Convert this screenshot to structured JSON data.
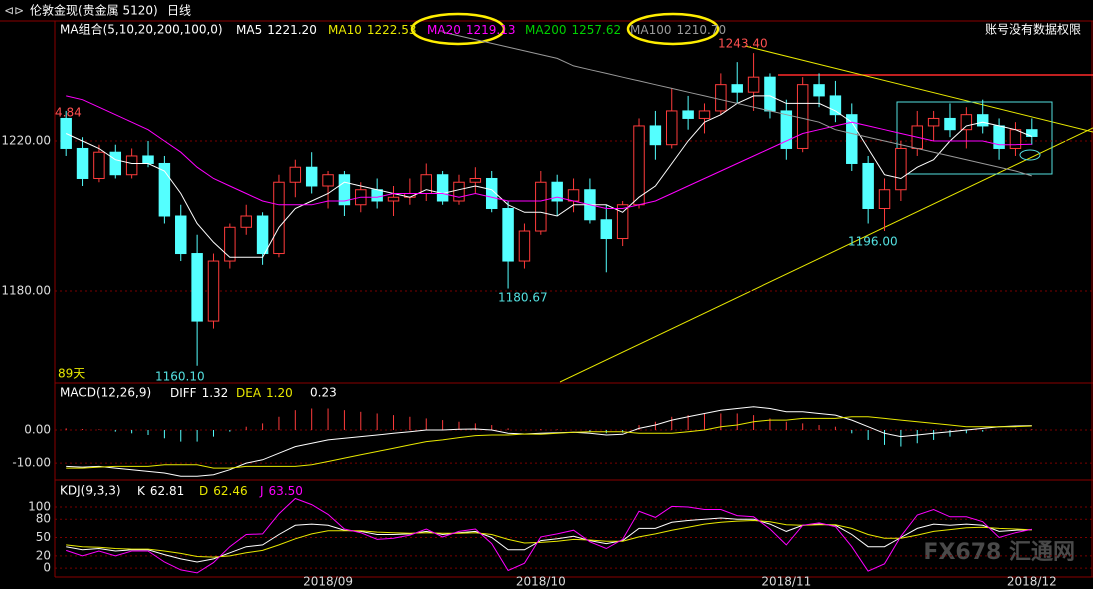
{
  "chart_data": [
    {
      "type": "candlestick",
      "title": "伦敦金现(贵金属 5120)",
      "period": "日线",
      "indicator": "MA组合(5,10,20,200,100,0)",
      "notice": "账号没有数据权限",
      "up_color": "#ff3c3c",
      "down_color": "#54ffff",
      "ylim": [
        1155.5,
        1251.7
      ],
      "yticks": [
        {
          "value": 1180,
          "label": "1180.00"
        },
        {
          "value": 1220,
          "label": "1220.00"
        }
      ],
      "annotations": [
        "4.84",
        "1243.40",
        "1196.00",
        "1180.67",
        "1160.10",
        "89天"
      ],
      "open": [
        1226,
        1218,
        1210,
        1217,
        1211,
        1216,
        1214,
        1200,
        1190,
        1172,
        1188,
        1197,
        1200,
        1190,
        1209,
        1213,
        1208,
        1211,
        1203,
        1207,
        1204,
        1205,
        1206,
        1211,
        1204,
        1209,
        1210,
        1202,
        1188,
        1196,
        1209,
        1204,
        1207,
        1199,
        1194,
        1203,
        1224,
        1219,
        1228,
        1226,
        1228,
        1235,
        1233,
        1237,
        1228,
        1218,
        1235,
        1232,
        1227,
        1214,
        1202,
        1207,
        1218,
        1224,
        1226,
        1223,
        1227,
        1224,
        1218,
        1223
      ],
      "high": [
        1228,
        1221,
        1219,
        1219,
        1218,
        1220,
        1216,
        1203,
        1195,
        1190,
        1198,
        1203,
        1201,
        1211,
        1215,
        1217,
        1212,
        1212,
        1209,
        1210,
        1208,
        1210,
        1214,
        1212,
        1211,
        1213,
        1212,
        1204,
        1198,
        1212,
        1211,
        1210,
        1210,
        1203,
        1204,
        1226,
        1228,
        1234,
        1232,
        1230,
        1238,
        1241,
        1243.4,
        1238,
        1231,
        1237,
        1238,
        1236,
        1230,
        1216,
        1210,
        1220,
        1228,
        1228,
        1230,
        1229,
        1231,
        1226,
        1225,
        1226
      ],
      "low": [
        1216,
        1208,
        1209,
        1210,
        1210,
        1213,
        1198,
        1188,
        1160.1,
        1170,
        1186,
        1195,
        1187,
        1189,
        1205,
        1206,
        1202,
        1200,
        1201,
        1202,
        1200,
        1203,
        1204,
        1203,
        1203,
        1206,
        1201,
        1180.67,
        1186,
        1195,
        1200,
        1201,
        1198,
        1185,
        1192,
        1202,
        1215,
        1218,
        1223,
        1222,
        1227,
        1230,
        1228,
        1226,
        1215,
        1217,
        1229,
        1225,
        1212,
        1198,
        1196,
        1204,
        1216,
        1220,
        1221,
        1218,
        1222,
        1215,
        1216,
        1219
      ],
      "close": [
        1218,
        1210,
        1217,
        1211,
        1216,
        1214,
        1200,
        1190,
        1172,
        1188,
        1197,
        1200,
        1190,
        1209,
        1213,
        1208,
        1211,
        1203,
        1207,
        1204,
        1205,
        1206,
        1211,
        1204,
        1209,
        1210,
        1202,
        1188,
        1196,
        1209,
        1204,
        1207,
        1199,
        1194,
        1203,
        1224,
        1219,
        1228,
        1226,
        1228,
        1235,
        1233,
        1237,
        1228,
        1218,
        1235,
        1232,
        1227,
        1214,
        1202,
        1207,
        1218,
        1224,
        1226,
        1223,
        1227,
        1224,
        1218,
        1223,
        1221.2
      ],
      "series": [
        {
          "name": "MA5",
          "color": "#ffffff",
          "label": "1221.20",
          "values": [
            1222,
            1220,
            1218,
            1215,
            1214,
            1214,
            1212,
            1206,
            1198,
            1193,
            1189,
            1189,
            1189,
            1197,
            1202,
            1204,
            1206,
            1209,
            1208,
            1207,
            1206,
            1205,
            1207,
            1206,
            1207,
            1208,
            1207,
            1203,
            1201,
            1201,
            1200,
            1203,
            1203,
            1203,
            1201,
            1205,
            1208,
            1214,
            1220,
            1225,
            1227,
            1230,
            1232,
            1232,
            1230,
            1230,
            1230,
            1228,
            1225,
            1218,
            1211,
            1210,
            1213,
            1215,
            1220,
            1224,
            1225,
            1224,
            1223,
            1221.2
          ]
        },
        {
          "name": "MA10",
          "color": "#e8e800",
          "label": "1222.53"
        },
        {
          "name": "MA20",
          "color": "#ff00ff",
          "label": "1219.13",
          "values": [
            1232,
            1231,
            1229,
            1227,
            1225,
            1223,
            1220,
            1217,
            1213,
            1210,
            1208,
            1206,
            1204,
            1203,
            1203,
            1203,
            1204,
            1204,
            1205,
            1205,
            1206,
            1206,
            1206,
            1206,
            1205,
            1206,
            1205,
            1204,
            1204,
            1204,
            1205,
            1204,
            1203,
            1202,
            1202,
            1203,
            1204,
            1206,
            1208,
            1210,
            1212,
            1214,
            1216,
            1218,
            1220,
            1222,
            1223,
            1224,
            1225,
            1224,
            1223,
            1222,
            1221,
            1220,
            1220,
            1220,
            1220,
            1219,
            1219,
            1219.13
          ]
        },
        {
          "name": "MA200",
          "color": "#00d000",
          "label": "1257.62"
        },
        {
          "name": "MA100",
          "color": "#9a9a9a",
          "label": "1210.70",
          "values": [
            null,
            null,
            null,
            null,
            null,
            null,
            null,
            null,
            null,
            null,
            null,
            null,
            null,
            null,
            null,
            null,
            null,
            null,
            null,
            null,
            null,
            null,
            null,
            1249,
            1248,
            1247,
            1246,
            1245,
            1244,
            1243,
            1242,
            1240,
            1239,
            1238,
            1237,
            1236,
            1235,
            1234,
            1233,
            1232,
            1231,
            1230,
            1229,
            1228,
            1227,
            1226,
            1225,
            1223,
            1222,
            1221,
            1220,
            1219,
            1218,
            1217,
            1216,
            1215,
            1214,
            1213,
            1212,
            1210.7
          ]
        }
      ]
    },
    {
      "type": "macd",
      "title": "MACD(12,26,9)",
      "up_color": "#ff3c3c",
      "down_color": "#54ffff",
      "ylim": [
        -14.5,
        13.6
      ],
      "yticks": [
        {
          "value": 0,
          "label": "0.00"
        },
        {
          "value": -10,
          "label": "-10.00"
        }
      ],
      "hist_label": "0.23",
      "values": [
        0.5,
        0.3,
        0.2,
        -0.5,
        -1,
        -1.5,
        -2.5,
        -3.5,
        -3.5,
        -2,
        -0.5,
        1,
        2,
        4,
        6,
        6.5,
        6.5,
        6,
        5.5,
        5,
        4.5,
        4,
        3.5,
        3,
        2.5,
        2,
        1.5,
        0.5,
        0,
        0.3,
        0.2,
        0,
        -0.5,
        -1,
        -0.8,
        1.5,
        2.5,
        4,
        4.5,
        5,
        5,
        5,
        4.5,
        3.5,
        2.5,
        2,
        1.5,
        1,
        -1,
        -3,
        -4.5,
        -5,
        -4,
        -3,
        -2,
        -1,
        -0.5,
        0,
        0.2,
        0.23
      ],
      "series": [
        {
          "name": "DIFF",
          "color": "#ffffff",
          "label": "1.32",
          "values": [
            -11,
            -11.2,
            -11,
            -11.5,
            -12,
            -12.5,
            -13,
            -14,
            -14,
            -13.5,
            -12,
            -10,
            -9,
            -7,
            -5,
            -4,
            -3,
            -2.5,
            -2,
            -1.5,
            -1,
            -0.5,
            0,
            0,
            0.2,
            0.3,
            0,
            -1,
            -1.2,
            -1,
            -0.8,
            -0.7,
            -1,
            -1.5,
            -1.3,
            0.5,
            1.5,
            3,
            4,
            5,
            6,
            6.5,
            7,
            6.5,
            5.5,
            5.5,
            5,
            4.5,
            3,
            1,
            -1,
            -2,
            -1.5,
            -1,
            -0.5,
            0,
            0.5,
            1,
            1.2,
            1.32
          ]
        },
        {
          "name": "DEA",
          "color": "#e8e800",
          "label": "1.20",
          "values": [
            -11.5,
            -11.5,
            -11.2,
            -11,
            -11,
            -11,
            -10.5,
            -10.5,
            -10.5,
            -11.5,
            -11.5,
            -11,
            -11,
            -11,
            -11,
            -10.5,
            -9.5,
            -8.5,
            -7.5,
            -6.5,
            -5.5,
            -4.5,
            -3.5,
            -3,
            -2.3,
            -1.7,
            -1.5,
            -1.5,
            -1.2,
            -1.3,
            -1,
            -0.7,
            -0.5,
            -0.5,
            -0.5,
            -1,
            -1,
            -1,
            -0.5,
            0,
            1,
            1.5,
            2.5,
            3,
            3,
            3.5,
            3.5,
            3.5,
            4,
            4,
            3.5,
            3,
            2.5,
            2,
            1.5,
            1,
            1,
            1,
            1,
            1.2
          ]
        }
      ]
    },
    {
      "type": "line",
      "title": "KDJ(9,3,3)",
      "watermark": "FX678 汇通网",
      "ylim": [
        -13,
        141
      ],
      "yticks": [
        0,
        20,
        50,
        80,
        100
      ],
      "categories": [
        null,
        null,
        null,
        null,
        null,
        null,
        null,
        null,
        null,
        null,
        null,
        null,
        null,
        null,
        null,
        null,
        "2018/09",
        null,
        null,
        null,
        null,
        null,
        null,
        null,
        null,
        null,
        null,
        null,
        null,
        "2018/10",
        null,
        null,
        null,
        null,
        null,
        null,
        null,
        null,
        null,
        null,
        null,
        null,
        null,
        null,
        "2018/11",
        null,
        null,
        null,
        null,
        null,
        null,
        null,
        null,
        null,
        null,
        null,
        null,
        null,
        null,
        "2018/12"
      ],
      "series": [
        {
          "name": "K",
          "color": "#ffffff",
          "label": "62.81",
          "values": [
            35,
            30,
            32,
            28,
            30,
            30,
            22,
            15,
            10,
            15,
            25,
            35,
            38,
            55,
            70,
            72,
            70,
            62,
            60,
            55,
            55,
            56,
            60,
            55,
            58,
            60,
            50,
            30,
            30,
            45,
            48,
            52,
            45,
            40,
            45,
            65,
            65,
            75,
            78,
            80,
            82,
            80,
            80,
            72,
            60,
            70,
            72,
            70,
            55,
            35,
            35,
            50,
            65,
            72,
            70,
            72,
            70,
            60,
            62,
            62.81
          ]
        },
        {
          "name": "D",
          "color": "#e8e800",
          "label": "62.46",
          "values": [
            38,
            35,
            34,
            32,
            31,
            31,
            28,
            24,
            19,
            18,
            20,
            25,
            29,
            38,
            48,
            56,
            61,
            61,
            61,
            59,
            58,
            57,
            58,
            57,
            57,
            58,
            55,
            47,
            41,
            42,
            44,
            47,
            46,
            44,
            44,
            51,
            56,
            62,
            67,
            72,
            75,
            77,
            78,
            76,
            71,
            70,
            71,
            71,
            65,
            55,
            49,
            49,
            54,
            60,
            63,
            66,
            67,
            65,
            64,
            62.46
          ]
        },
        {
          "name": "J",
          "color": "#ff00ff",
          "label": "63.50",
          "values": [
            29,
            20,
            28,
            20,
            28,
            28,
            10,
            -3,
            -8,
            9,
            35,
            55,
            56,
            89,
            114,
            104,
            88,
            64,
            58,
            47,
            49,
            54,
            64,
            51,
            60,
            64,
            40,
            -4,
            8,
            51,
            56,
            62,
            43,
            32,
            47,
            93,
            83,
            101,
            100,
            96,
            96,
            86,
            84,
            64,
            38,
            70,
            74,
            68,
            35,
            -5,
            7,
            52,
            87,
            96,
            84,
            84,
            76,
            50,
            58,
            63.5
          ]
        }
      ]
    }
  ]
}
